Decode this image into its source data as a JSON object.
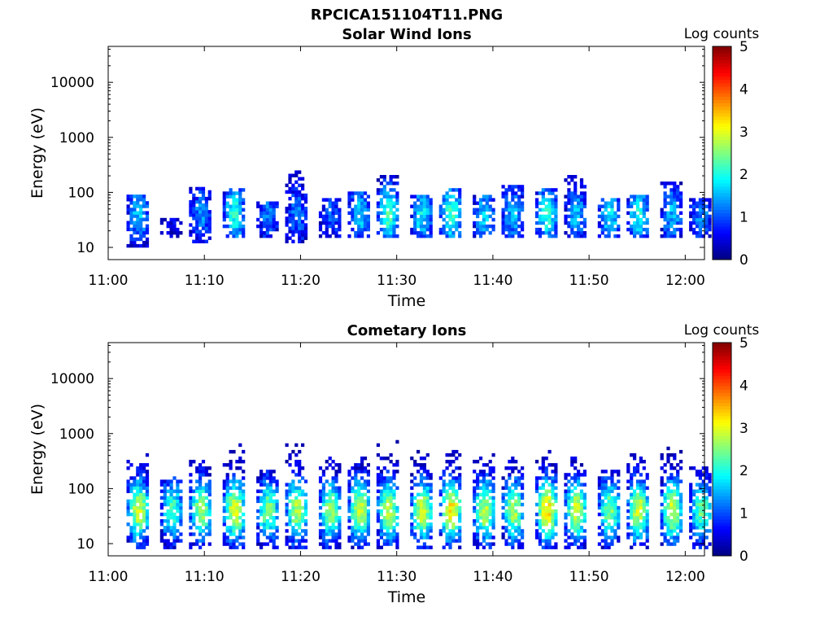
{
  "figure_title": "RPCICA151104T11.PNG",
  "colors": {
    "colormap": "jet",
    "axis": "#000000",
    "background": "#ffffff"
  },
  "chart_data": [
    {
      "type": "heatmap",
      "title": "Solar Wind Ions",
      "xlabel": "Time",
      "ylabel": "Energy (eV)",
      "yscale": "log",
      "xlim": [
        "11:00",
        "12:02"
      ],
      "ylim": [
        6,
        45000
      ],
      "xticks": [
        "11:00",
        "11:10",
        "11:20",
        "11:30",
        "11:40",
        "11:50",
        "12:00"
      ],
      "yticks": [
        "10",
        "100",
        "1000",
        "10000"
      ],
      "colorbar": {
        "label": "Log counts",
        "range": [
          0,
          5
        ],
        "ticks": [
          "0",
          "1",
          "2",
          "3",
          "4",
          "5"
        ]
      },
      "grid": false,
      "bursts": [
        {
          "t": 3.0,
          "emin": 10,
          "emax": 80,
          "peak": 1.6
        },
        {
          "t": 6.5,
          "emin": 15,
          "emax": 30,
          "peak": 0.6
        },
        {
          "t": 9.5,
          "emin": 12,
          "emax": 120,
          "peak": 1.3
        },
        {
          "t": 13.0,
          "emin": 15,
          "emax": 110,
          "peak": 2.0
        },
        {
          "t": 16.5,
          "emin": 15,
          "emax": 60,
          "peak": 1.2
        },
        {
          "t": 19.5,
          "emin": 12,
          "emax": 250,
          "peak": 1.2
        },
        {
          "t": 23.0,
          "emin": 15,
          "emax": 70,
          "peak": 1.0
        },
        {
          "t": 26.0,
          "emin": 15,
          "emax": 100,
          "peak": 1.6
        },
        {
          "t": 29.0,
          "emin": 15,
          "emax": 200,
          "peak": 2.2
        },
        {
          "t": 32.5,
          "emin": 15,
          "emax": 80,
          "peak": 1.8
        },
        {
          "t": 35.5,
          "emin": 15,
          "emax": 110,
          "peak": 2.2
        },
        {
          "t": 39.0,
          "emin": 15,
          "emax": 80,
          "peak": 1.6
        },
        {
          "t": 42.0,
          "emin": 15,
          "emax": 120,
          "peak": 1.5
        },
        {
          "t": 45.5,
          "emin": 15,
          "emax": 110,
          "peak": 2.0
        },
        {
          "t": 48.5,
          "emin": 15,
          "emax": 200,
          "peak": 1.5
        },
        {
          "t": 52.0,
          "emin": 15,
          "emax": 70,
          "peak": 1.8
        },
        {
          "t": 55.0,
          "emin": 15,
          "emax": 90,
          "peak": 1.9
        },
        {
          "t": 58.5,
          "emin": 15,
          "emax": 150,
          "peak": 1.5
        },
        {
          "t": 61.5,
          "emin": 15,
          "emax": 70,
          "peak": 1.3
        }
      ]
    },
    {
      "type": "heatmap",
      "title": "Cometary Ions",
      "xlabel": "Time",
      "ylabel": "Energy (eV)",
      "yscale": "log",
      "xlim": [
        "11:00",
        "12:02"
      ],
      "ylim": [
        6,
        45000
      ],
      "xticks": [
        "11:00",
        "11:10",
        "11:20",
        "11:30",
        "11:40",
        "11:50",
        "12:00"
      ],
      "yticks": [
        "10",
        "100",
        "1000",
        "10000"
      ],
      "colorbar": {
        "label": "Log counts",
        "range": [
          0,
          5
        ],
        "ticks": [
          "0",
          "1",
          "2",
          "3",
          "4",
          "5"
        ]
      },
      "grid": false,
      "bursts": [
        {
          "t": 3.0,
          "emin": 8,
          "emax": 500,
          "peak": 2.9
        },
        {
          "t": 6.5,
          "emin": 8,
          "emax": 150,
          "peak": 2.2
        },
        {
          "t": 9.5,
          "emin": 8,
          "emax": 300,
          "peak": 2.7
        },
        {
          "t": 13.0,
          "emin": 8,
          "emax": 600,
          "peak": 3.0
        },
        {
          "t": 16.5,
          "emin": 8,
          "emax": 250,
          "peak": 2.5
        },
        {
          "t": 19.5,
          "emin": 8,
          "emax": 600,
          "peak": 2.8
        },
        {
          "t": 23.0,
          "emin": 8,
          "emax": 350,
          "peak": 2.6
        },
        {
          "t": 26.0,
          "emin": 8,
          "emax": 400,
          "peak": 2.9
        },
        {
          "t": 29.0,
          "emin": 8,
          "emax": 700,
          "peak": 2.8
        },
        {
          "t": 32.5,
          "emin": 8,
          "emax": 450,
          "peak": 2.9
        },
        {
          "t": 35.5,
          "emin": 8,
          "emax": 450,
          "peak": 3.2
        },
        {
          "t": 39.0,
          "emin": 8,
          "emax": 400,
          "peak": 2.8
        },
        {
          "t": 42.0,
          "emin": 8,
          "emax": 350,
          "peak": 2.7
        },
        {
          "t": 45.5,
          "emin": 8,
          "emax": 500,
          "peak": 3.3
        },
        {
          "t": 48.5,
          "emin": 8,
          "emax": 500,
          "peak": 2.9
        },
        {
          "t": 52.0,
          "emin": 8,
          "emax": 200,
          "peak": 2.5
        },
        {
          "t": 55.0,
          "emin": 8,
          "emax": 400,
          "peak": 2.9
        },
        {
          "t": 58.5,
          "emin": 8,
          "emax": 600,
          "peak": 2.9
        },
        {
          "t": 61.5,
          "emin": 8,
          "emax": 250,
          "peak": 2.4
        }
      ]
    }
  ]
}
